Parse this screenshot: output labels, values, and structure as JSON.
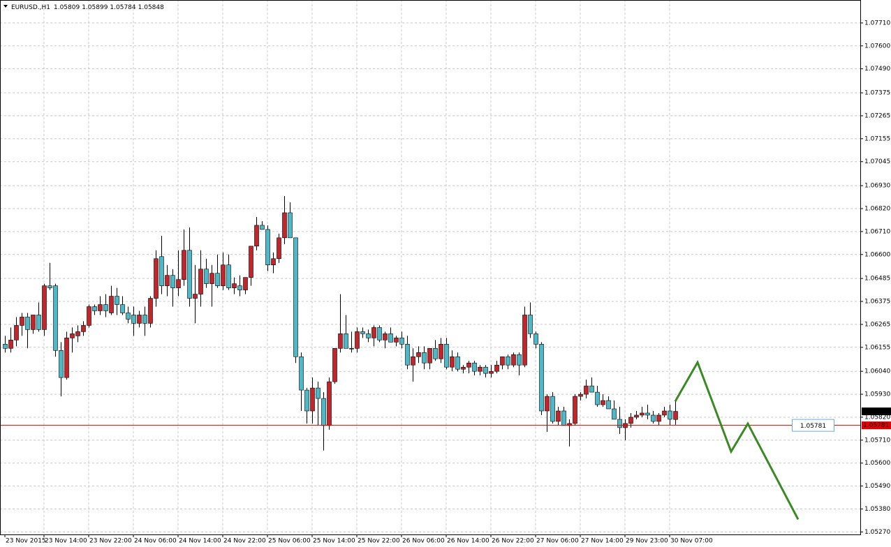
{
  "chart_data": {
    "type": "candlestick",
    "title": "EURUSD.,H1",
    "up_color": "#c0272d",
    "down_color": "#4db8c8",
    "wick_color": "#000000",
    "grid": true,
    "ylim": [
      1.05258,
      1.0782
    ],
    "yticks": [
      {
        "value": 1.0771,
        "label": "1.07710"
      },
      {
        "value": 1.076,
        "label": "1.07600"
      },
      {
        "value": 1.0749,
        "label": "1.07490"
      },
      1.07375,
      1.07265,
      1.07155,
      1.07045,
      {
        "value": 1.0693,
        "label": "1.06930"
      },
      {
        "value": 1.0682,
        "label": "1.06820"
      },
      {
        "value": 1.0671,
        "label": "1.06710"
      },
      {
        "value": 1.066,
        "label": "1.06600"
      },
      1.06485,
      1.06375,
      1.06265,
      1.06155,
      {
        "value": 1.0604,
        "label": "1.06040"
      },
      {
        "value": 1.0593,
        "label": "1.05930"
      },
      {
        "value": 1.0582,
        "label": "1.05820"
      },
      {
        "value": 1.0571,
        "label": "1.05710"
      },
      {
        "value": 1.056,
        "label": "1.05600"
      },
      {
        "value": 1.0549,
        "label": "1.05490"
      },
      {
        "value": 1.0538,
        "label": "1.05380"
      },
      {
        "value": 1.0527,
        "label": "1.05270"
      }
    ],
    "categories": [
      "23 Nov 2015",
      null,
      null,
      null,
      null,
      null,
      null,
      "23 Nov 14:00",
      null,
      null,
      null,
      null,
      null,
      null,
      null,
      "23 Nov 22:00",
      null,
      null,
      null,
      null,
      null,
      null,
      null,
      "24 Nov 06:00",
      null,
      null,
      null,
      null,
      null,
      null,
      null,
      "24 Nov 14:00",
      null,
      null,
      null,
      null,
      null,
      null,
      null,
      "24 Nov 22:00",
      null,
      null,
      null,
      null,
      null,
      null,
      null,
      "25 Nov 06:00",
      null,
      null,
      null,
      null,
      null,
      null,
      null,
      "25 Nov 14:00",
      null,
      null,
      null,
      null,
      null,
      null,
      null,
      "25 Nov 22:00",
      null,
      null,
      null,
      null,
      null,
      null,
      null,
      "26 Nov 06:00",
      null,
      null,
      null,
      null,
      null,
      null,
      null,
      "26 Nov 14:00",
      null,
      null,
      null,
      null,
      null,
      null,
      null,
      "26 Nov 22:00",
      null,
      null,
      null,
      null,
      null,
      null,
      null,
      "27 Nov 06:00",
      null,
      null,
      null,
      null,
      null,
      null,
      null,
      "27 Nov 14:00",
      null,
      null,
      null,
      null,
      null,
      null,
      null,
      "29 Nov 23:00",
      null,
      null,
      null,
      null,
      null,
      null,
      null,
      "30 Nov 07:00",
      null
    ],
    "open": [
      1.0617,
      1.0615,
      1.0619,
      1.0626,
      1.063,
      1.0624,
      1.0631,
      1.0624,
      1.0645,
      1.0645,
      1.0614,
      1.0601,
      1.062,
      1.0621,
      1.0623,
      1.0626,
      1.0635,
      1.0633,
      1.0636,
      1.0632,
      1.064,
      1.0636,
      1.0632,
      1.0631,
      1.0627,
      1.0631,
      1.0627,
      1.0639,
      1.0659,
      1.0645,
      1.065,
      1.0644,
      1.0648,
      1.0662,
      1.0639,
      1.0641,
      1.0653,
      1.0646,
      1.0651,
      1.0645,
      1.0655,
      1.0644,
      1.0645,
      1.0643,
      1.0649,
      1.0664,
      1.0674,
      1.0672,
      1.0655,
      1.0658,
      1.0668,
      1.068,
      1.0668,
      1.0611,
      1.0595,
      1.0585,
      1.0596,
      1.0591,
      1.0578,
      1.0599,
      1.0615,
      1.0622,
      1.0615,
      1.0615,
      1.0623,
      1.0622,
      1.062,
      1.0625,
      1.0619,
      1.0622,
      1.0618,
      1.062,
      1.0617,
      1.0607,
      1.0611,
      1.0613,
      1.0608,
      1.0615,
      1.061,
      1.0617,
      1.0606,
      1.0611,
      1.0605,
      1.0606,
      1.0608,
      1.0604,
      1.0606,
      1.0603,
      1.0604,
      1.0607,
      1.0611,
      1.0607,
      1.0612,
      1.0607,
      1.0631,
      1.0622,
      1.0617,
      1.0585,
      1.0592,
      1.058,
      1.0585,
      1.0578,
      1.0579,
      1.0592,
      1.0593,
      1.0597,
      1.0594,
      1.0588,
      1.059,
      1.0586,
      1.0581,
      1.0577,
      1.0579,
      1.0582,
      1.0583,
      1.0584,
      1.0583,
      1.058,
      1.0583,
      1.0585,
      1.05809
    ],
    "high": [
      1.0621,
      1.0625,
      1.063,
      1.0632,
      1.0632,
      1.0631,
      1.0637,
      1.0646,
      1.0656,
      1.0646,
      1.0618,
      1.0623,
      1.0625,
      1.0626,
      1.0628,
      1.0636,
      1.0636,
      1.064,
      1.0641,
      1.0645,
      1.0644,
      1.064,
      1.0635,
      1.0635,
      1.0633,
      1.0635,
      1.064,
      1.0662,
      1.0669,
      1.0655,
      1.0653,
      1.0662,
      1.0672,
      1.0673,
      1.0655,
      1.0662,
      1.0658,
      1.0655,
      1.066,
      1.0661,
      1.066,
      1.0649,
      1.065,
      1.0649,
      1.0664,
      1.0678,
      1.0676,
      1.0674,
      1.0661,
      1.067,
      1.0688,
      1.0685,
      1.0668,
      1.0613,
      1.0596,
      1.0601,
      1.0599,
      1.0594,
      1.0601,
      1.0615,
      1.0641,
      1.0631,
      1.0623,
      1.0625,
      1.0625,
      1.0624,
      1.0626,
      1.0626,
      1.0623,
      1.0625,
      1.0621,
      1.0623,
      1.0621,
      1.0615,
      1.0616,
      1.0616,
      1.0615,
      1.0619,
      1.062,
      1.062,
      1.0614,
      1.0613,
      1.0607,
      1.0609,
      1.0609,
      1.0607,
      1.0607,
      1.0607,
      1.0609,
      1.0611,
      1.0612,
      1.0613,
      1.0613,
      1.0635,
      1.0637,
      1.0623,
      1.0618,
      1.0593,
      1.0594,
      1.0587,
      1.0587,
      1.0581,
      1.0593,
      1.0594,
      1.06,
      1.0601,
      1.0597,
      1.0593,
      1.0592,
      1.059,
      1.0587,
      1.0581,
      1.0584,
      1.0585,
      1.0587,
      1.0588,
      1.0585,
      1.0584,
      1.0587,
      1.0588,
      1.05899
    ],
    "low": [
      1.0613,
      1.0613,
      1.0616,
      1.0621,
      1.0615,
      1.0622,
      1.0623,
      1.0621,
      1.0643,
      1.0611,
      1.0592,
      1.06,
      1.0613,
      1.0618,
      1.0621,
      1.0625,
      1.0631,
      1.0631,
      1.063,
      1.0631,
      1.0631,
      1.0631,
      1.0627,
      1.0621,
      1.0625,
      1.0621,
      1.0625,
      1.0635,
      1.0641,
      1.064,
      1.0635,
      1.064,
      1.0645,
      1.0635,
      1.0627,
      1.0635,
      1.0644,
      1.0635,
      1.0644,
      1.0643,
      1.0643,
      1.0641,
      1.064,
      1.0641,
      1.0645,
      1.0662,
      1.0672,
      1.0652,
      1.0651,
      1.0656,
      1.0665,
      1.0668,
      1.0608,
      1.0585,
      1.0579,
      1.0579,
      1.0578,
      1.0566,
      1.0576,
      1.0598,
      1.0613,
      1.0615,
      1.0613,
      1.0613,
      1.062,
      1.0618,
      1.0616,
      1.0618,
      1.0615,
      1.0618,
      1.0616,
      1.0615,
      1.0605,
      1.0599,
      1.0608,
      1.0605,
      1.0605,
      1.0609,
      1.0608,
      1.0605,
      1.0604,
      1.0604,
      1.0603,
      1.0603,
      1.0602,
      1.0602,
      1.0601,
      1.0601,
      1.0603,
      1.0605,
      1.0605,
      1.0606,
      1.0602,
      1.0606,
      1.062,
      1.0615,
      1.0583,
      1.0575,
      1.0579,
      1.0578,
      1.0578,
      1.0568,
      1.0578,
      1.059,
      1.0591,
      1.0594,
      1.0587,
      1.0587,
      1.0586,
      1.0581,
      1.0574,
      1.0571,
      1.0577,
      1.0581,
      1.0582,
      1.0581,
      1.0579,
      1.0578,
      1.0582,
      1.0578,
      1.05784
    ],
    "close": [
      1.0615,
      1.0619,
      1.0626,
      1.063,
      1.0624,
      1.0631,
      1.0624,
      1.0645,
      1.0644,
      1.0614,
      1.0601,
      1.062,
      1.0622,
      1.0623,
      1.0626,
      1.0635,
      1.0633,
      1.0636,
      1.0633,
      1.064,
      1.0636,
      1.0632,
      1.0629,
      1.0627,
      1.0631,
      1.0627,
      1.0639,
      1.0658,
      1.0645,
      1.065,
      1.0644,
      1.0648,
      1.0662,
      1.0639,
      1.0641,
      1.0653,
      1.0646,
      1.0651,
      1.0645,
      1.0655,
      1.0644,
      1.0646,
      1.0643,
      1.0649,
      1.0664,
      1.0674,
      1.0672,
      1.0655,
      1.0658,
      1.0668,
      1.068,
      1.0668,
      1.0611,
      1.0595,
      1.0585,
      1.0596,
      1.0591,
      1.0578,
      1.0599,
      1.0615,
      1.0622,
      1.0615,
      1.0615,
      1.0623,
      1.0622,
      1.062,
      1.0625,
      1.0619,
      1.0622,
      1.0618,
      1.062,
      1.0617,
      1.0607,
      1.0611,
      1.0613,
      1.0608,
      1.0615,
      1.061,
      1.0617,
      1.0606,
      1.0611,
      1.0605,
      1.0606,
      1.0608,
      1.0604,
      1.0606,
      1.0603,
      1.0604,
      1.0607,
      1.0611,
      1.0607,
      1.0612,
      1.0607,
      1.0631,
      1.0622,
      1.0617,
      1.0585,
      1.0592,
      1.058,
      1.0585,
      1.0578,
      1.0579,
      1.0592,
      1.0593,
      1.0597,
      1.0594,
      1.0588,
      1.059,
      1.0586,
      1.0581,
      1.0577,
      1.0579,
      1.0582,
      1.0583,
      1.0584,
      1.0583,
      1.058,
      1.0583,
      1.0585,
      1.0581,
      1.05848
    ],
    "level": {
      "value": 1.05781,
      "color": "#e00000"
    },
    "forecast": {
      "color": "#3a8a24",
      "x": [
        120,
        124,
        130,
        133,
        142
      ],
      "values": [
        1.05896,
        1.06083,
        1.05655,
        1.05789,
        1.0533
      ]
    }
  }
}
